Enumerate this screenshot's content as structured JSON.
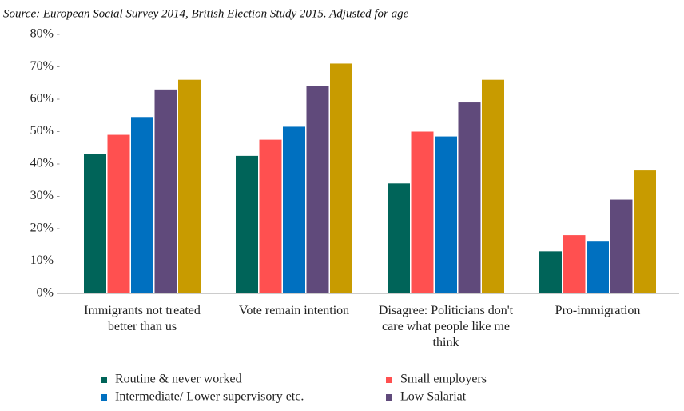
{
  "chart_data": {
    "type": "bar",
    "subtitle": "Source:  European Social Survey 2014, British Election Study 2015.  Adjusted for age",
    "categories": [
      "Immigrants not treated better than us",
      "Vote remain intention",
      "Disagree: Politicians don't care what people like me think",
      "Pro-immigration"
    ],
    "series": [
      {
        "name": "Routine & never worked",
        "color": "#006459",
        "values": [
          43,
          42.5,
          34,
          13
        ]
      },
      {
        "name": "Small employers",
        "color": "#ff5050",
        "values": [
          49,
          47.5,
          50,
          18
        ]
      },
      {
        "name": "Intermediate/ Lower supervisory etc.",
        "color": "#0070c0",
        "values": [
          54.5,
          51.5,
          48.5,
          16
        ]
      },
      {
        "name": "Low Salariat",
        "color": "#604a7b",
        "values": [
          63,
          64,
          59,
          29
        ]
      },
      {
        "color": "#c89b00",
        "values": [
          66,
          71,
          66,
          38
        ]
      }
    ],
    "ylim": [
      0,
      80
    ],
    "yticks": [
      {
        "value": 0,
        "label": "0%"
      },
      {
        "value": 10,
        "label": "10%"
      },
      {
        "value": 20,
        "label": "20%"
      },
      {
        "value": 30,
        "label": "30%"
      },
      {
        "value": 40,
        "label": "40%"
      },
      {
        "value": 50,
        "label": "50%"
      },
      {
        "value": 60,
        "label": "60%"
      },
      {
        "value": 70,
        "label": "70%"
      },
      {
        "value": 80,
        "label": "80%"
      }
    ],
    "grid": false
  }
}
